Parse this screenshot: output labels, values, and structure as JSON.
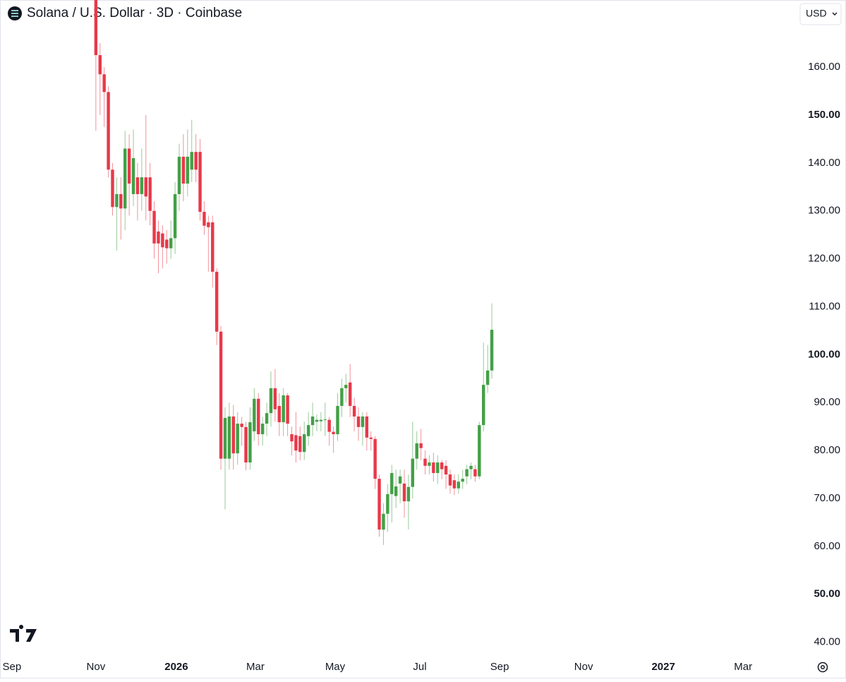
{
  "chart_data": {
    "type": "candlestick",
    "title": "Solana / U.S. Dollar · 3D · Coinbase",
    "currency": "USD",
    "up_color": "#43a047",
    "down_color": "#e8394a",
    "categories": [
      null,
      null,
      null,
      null,
      null,
      null,
      null,
      null,
      null,
      null,
      null,
      null,
      null,
      null,
      null,
      null,
      null,
      null,
      null,
      null,
      null,
      null,
      null,
      null,
      null,
      null,
      null,
      null,
      null,
      null,
      null,
      null,
      null,
      null,
      null,
      null,
      null,
      null,
      null,
      null,
      null,
      null,
      null,
      null,
      null,
      null,
      null,
      null,
      null,
      null,
      null,
      null,
      null,
      null,
      null,
      null,
      null,
      null,
      null,
      null,
      null,
      null,
      null,
      null,
      null,
      null,
      null,
      null,
      null,
      null,
      null,
      null,
      null,
      null,
      null,
      null,
      null,
      null,
      null,
      null,
      null,
      null,
      null,
      null,
      null,
      null,
      null,
      null,
      null,
      null,
      null,
      null,
      null,
      null,
      null,
      null
    ],
    "open": [
      176,
      162.5,
      158.5,
      154.8,
      138.6,
      130.8,
      133.5,
      130.5,
      143,
      133.5,
      137,
      133.5,
      137,
      137,
      130,
      125.7,
      125.3,
      124,
      122.2,
      124.3,
      133.5,
      141.3,
      135.7,
      138.6,
      142.3,
      142.3,
      129.8,
      127.6,
      127.6,
      117.3,
      104.8,
      78.3,
      78.3,
      87.1,
      79.4,
      85.6,
      84.9,
      77.5,
      84,
      90.8,
      83.4,
      85.6,
      87.8,
      93,
      89.3,
      85.9,
      91.5,
      83.4,
      83.2,
      83,
      79.7,
      83,
      85.3,
      86,
      86.1,
      86.4,
      86.4,
      83.9,
      83.4,
      89.3,
      93,
      94.2,
      89.3,
      87.1,
      84.9,
      87.1,
      82.7,
      82.4,
      74.1,
      63.5,
      66.8,
      70.9,
      70.5,
      73.1,
      73.1,
      69.4,
      72.4,
      78.3,
      81.5,
      78.3,
      76.8,
      77.5,
      75.3,
      77.5,
      76.8,
      75,
      73.8,
      72.1,
      73.5,
      74.6,
      76.1,
      76.1,
      74.6,
      85.3,
      93.7,
      96.7
    ],
    "high": [
      180,
      165,
      160,
      156,
      140,
      137,
      137,
      146.7,
      146,
      147,
      140,
      143,
      150,
      140,
      132,
      128,
      127,
      126,
      128,
      136,
      144,
      146,
      147,
      149,
      146,
      145,
      132,
      129,
      129,
      118,
      106,
      89,
      90,
      89.5,
      88,
      87,
      86,
      89,
      93,
      92,
      87,
      90,
      96.5,
      97,
      92,
      93,
      92,
      85,
      88,
      85,
      86,
      88,
      90,
      87.5,
      88,
      90,
      87,
      85,
      92,
      95,
      96,
      98,
      91,
      89,
      88,
      88,
      84,
      83,
      75,
      69,
      73,
      77,
      76,
      76,
      76,
      75,
      86,
      84,
      84.5,
      80,
      79,
      79.5,
      79,
      78,
      78,
      76,
      75,
      75,
      76,
      77,
      77.5,
      77,
      86,
      102.5,
      102,
      110.7
    ],
    "low": [
      146.7,
      150,
      147.5,
      137,
      129,
      121.7,
      124,
      126,
      129,
      131,
      128,
      130,
      128,
      127,
      120,
      117,
      118,
      119,
      120,
      121,
      130,
      132,
      133,
      136,
      136,
      128,
      125,
      117.3,
      114,
      102,
      76,
      67.7,
      76,
      76,
      77,
      81,
      75.9,
      76,
      82,
      81,
      81,
      83,
      85,
      86,
      83,
      83,
      83,
      79,
      77.5,
      78,
      78,
      81,
      83,
      84,
      84,
      83,
      81,
      79.5,
      82,
      87,
      90,
      87,
      84,
      82,
      81,
      80,
      80,
      72,
      62,
      60.3,
      63,
      65,
      68,
      69,
      66,
      63.5,
      70,
      76,
      78,
      75,
      75,
      73.5,
      73,
      74,
      72,
      71,
      70.7,
      71,
      72,
      73,
      74,
      73.5,
      74,
      84,
      92,
      95
    ],
    "close": [
      162.5,
      158.5,
      154.8,
      138.6,
      130.8,
      133.5,
      130.5,
      143,
      135.7,
      141,
      133.5,
      137,
      133,
      130,
      123.2,
      123.2,
      122.4,
      122.2,
      124.3,
      133.5,
      141.3,
      135.7,
      141.3,
      142.3,
      138.6,
      129.8,
      126.9,
      126.6,
      117.3,
      104.8,
      78.3,
      86.8,
      87.1,
      79.4,
      85.6,
      84.9,
      77.5,
      85.9,
      90.8,
      83.4,
      85.6,
      87.8,
      93,
      88.6,
      85.9,
      91.5,
      85.6,
      81.9,
      80,
      79.7,
      83.4,
      85.3,
      87.1,
      86.4,
      86.4,
      86.5,
      83.9,
      83.4,
      89.3,
      93,
      93.7,
      89.3,
      87.1,
      84.9,
      87.1,
      82.7,
      82.4,
      74.1,
      63.5,
      66.8,
      70.9,
      75.3,
      72.5,
      74.6,
      69.4,
      72.4,
      78.3,
      81.5,
      80.5,
      76.8,
      77.5,
      75.3,
      77.5,
      76.1,
      75,
      72.7,
      72.1,
      73.5,
      74.1,
      76.1,
      76.8,
      74.6,
      85.3,
      93.7,
      96.7,
      105.2
    ],
    "xlim": [
      -23,
      166.6
    ],
    "xticks": [
      {
        "value": -20.15,
        "label": "Sep"
      },
      {
        "value": 0,
        "label": "Nov"
      },
      {
        "value": 19.31,
        "label": "2026",
        "bold": true
      },
      {
        "value": 38.27,
        "label": "Mar"
      },
      {
        "value": 57.41,
        "label": "May"
      },
      {
        "value": 77.73,
        "label": "Jul"
      },
      {
        "value": 96.87,
        "label": "Sep"
      },
      {
        "value": 117.02,
        "label": "Nov"
      },
      {
        "value": 136.15,
        "label": "2027",
        "bold": true
      },
      {
        "value": 155.29,
        "label": "Mar"
      }
    ],
    "ylim": [
      37,
      174
    ],
    "yticks": [
      {
        "value": 40,
        "label": "40.00"
      },
      {
        "value": 50,
        "label": "50.00",
        "bold": true
      },
      {
        "value": 60,
        "label": "60.00"
      },
      {
        "value": 70,
        "label": "70.00"
      },
      {
        "value": 80,
        "label": "80.00"
      },
      {
        "value": 90,
        "label": "90.00"
      },
      {
        "value": 100,
        "label": "100.00",
        "bold": true
      },
      {
        "value": 110,
        "label": "110.00"
      },
      {
        "value": 120,
        "label": "120.00"
      },
      {
        "value": 130,
        "label": "130.00"
      },
      {
        "value": 140,
        "label": "140.00"
      },
      {
        "value": 150,
        "label": "150.00",
        "bold": true
      },
      {
        "value": 160,
        "label": "160.00"
      }
    ]
  }
}
